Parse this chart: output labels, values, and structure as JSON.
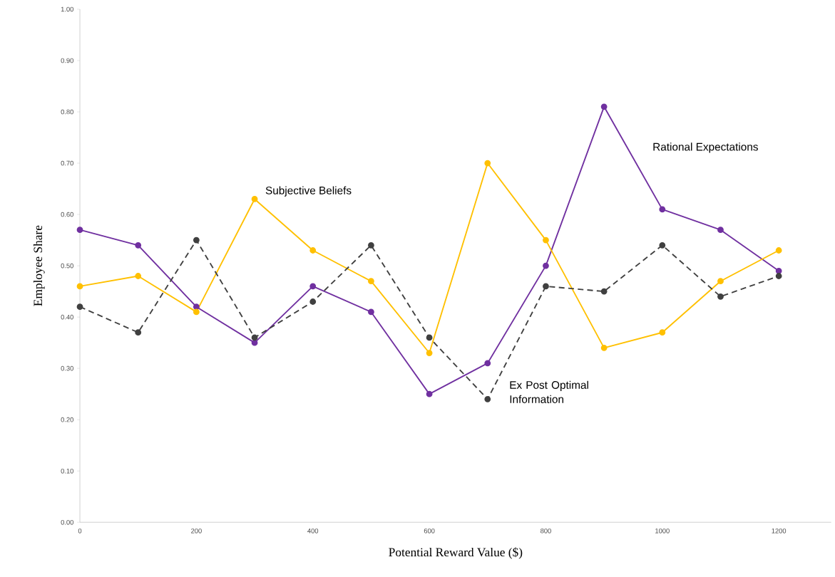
{
  "chart_data": {
    "type": "line",
    "xlabel": "Potential Reward Value ($)",
    "ylabel": "Employee Share",
    "x": [
      0,
      100,
      200,
      300,
      400,
      500,
      600,
      700,
      800,
      900,
      1000,
      1100,
      1200
    ],
    "series": [
      {
        "name": "Rational Expectations",
        "color": "#7030a0",
        "line_style": "solid",
        "values": [
          0.57,
          0.54,
          0.42,
          0.35,
          0.46,
          0.41,
          0.25,
          0.31,
          0.5,
          0.81,
          0.61,
          0.57,
          0.49
        ]
      },
      {
        "name": "Subjective Beliefs",
        "color": "#ffc000",
        "line_style": "solid",
        "values": [
          0.46,
          0.48,
          0.41,
          0.63,
          0.53,
          0.47,
          0.33,
          0.7,
          0.55,
          0.34,
          0.37,
          0.47,
          0.53
        ]
      },
      {
        "name": "Ex Post Optimal Information",
        "color": "#404040",
        "line_style": "dashed",
        "values": [
          0.42,
          0.37,
          0.55,
          0.36,
          0.43,
          0.54,
          0.36,
          0.24,
          0.46,
          0.45,
          0.54,
          0.44,
          0.48
        ]
      }
    ],
    "marker": "circle",
    "grid": false,
    "xlim": [
      0,
      1290
    ],
    "xticks": [
      0,
      200,
      400,
      600,
      800,
      1000,
      1200
    ],
    "ylim": [
      0,
      1
    ],
    "yticks": [
      {
        "value": 0,
        "label": "0.00"
      },
      {
        "value": 0.1,
        "label": "0.10"
      },
      {
        "value": 0.2,
        "label": "0.20"
      },
      {
        "value": 0.3,
        "label": "0.30"
      },
      {
        "value": 0.4,
        "label": "0.40"
      },
      {
        "value": 0.5,
        "label": "0.50"
      },
      {
        "value": 0.6,
        "label": "0.60"
      },
      {
        "value": 0.7,
        "label": "0.70"
      },
      {
        "value": 0.8,
        "label": "0.80"
      },
      {
        "value": 0.9,
        "label": "0.90"
      },
      {
        "value": 1,
        "label": "1.00"
      }
    ]
  }
}
